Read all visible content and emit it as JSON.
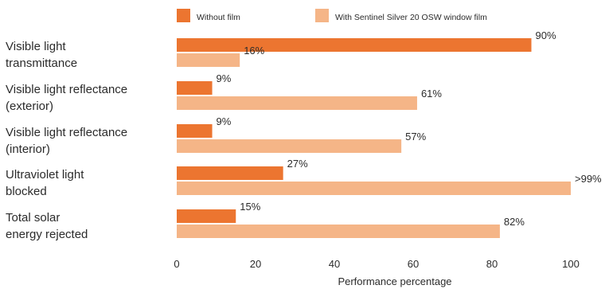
{
  "chart_data": {
    "type": "bar",
    "orientation": "horizontal",
    "categories": [
      [
        "Visible light",
        "transmittance"
      ],
      [
        "Visible light reflectance",
        "(exterior)"
      ],
      [
        "Visible light reflectance",
        "(interior)"
      ],
      [
        "Ultraviolet light",
        "blocked"
      ],
      [
        "Total solar",
        "energy rejected"
      ]
    ],
    "series": [
      {
        "name": "Without film",
        "color": "#ec7530",
        "values": [
          90,
          9,
          9,
          27,
          15
        ],
        "labels": [
          "90%",
          "9%",
          "9%",
          "27%",
          "15%"
        ]
      },
      {
        "name": "With Sentinel Silver 20 OSW window film",
        "color": "#f5b587",
        "values": [
          16,
          61,
          57,
          100,
          82
        ],
        "labels": [
          "16%",
          "61%",
          "57%",
          ">99%",
          "82%"
        ]
      }
    ],
    "xlabel": "Performance percentage",
    "xlim": [
      0,
      100
    ],
    "xticks": [
      0,
      20,
      40,
      60,
      80,
      100
    ],
    "grid": false,
    "legend_position": "top"
  }
}
